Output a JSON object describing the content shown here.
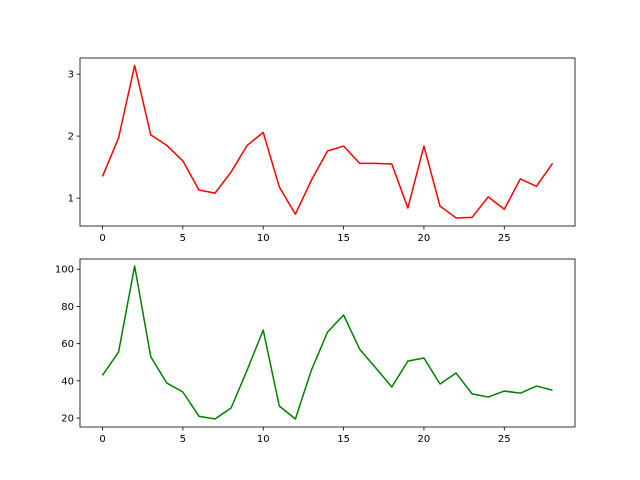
{
  "chart_data": [
    {
      "type": "line",
      "x": [
        0,
        1,
        2,
        3,
        4,
        5,
        6,
        7,
        8,
        9,
        10,
        11,
        12,
        13,
        14,
        15,
        16,
        17,
        18,
        19,
        20,
        21,
        22,
        23,
        24,
        25,
        26,
        27,
        28
      ],
      "series": [
        {
          "color": "#ff0000",
          "values": [
            1.35,
            1.97,
            3.14,
            2.02,
            1.85,
            1.6,
            1.13,
            1.08,
            1.42,
            1.85,
            2.06,
            1.18,
            0.74,
            1.29,
            1.76,
            1.84,
            1.56,
            1.56,
            1.55,
            0.84,
            1.84,
            0.87,
            0.68,
            0.69,
            1.02,
            0.82,
            1.31,
            1.19,
            1.56
          ]
        }
      ],
      "xlim": [
        -1.4,
        29.4
      ],
      "xticks": [
        0,
        5,
        10,
        15,
        20,
        25
      ],
      "ylim": [
        0.55,
        3.26
      ],
      "yticks": [
        1,
        2,
        3
      ]
    },
    {
      "type": "line",
      "x": [
        0,
        1,
        2,
        3,
        4,
        5,
        6,
        7,
        8,
        9,
        10,
        11,
        12,
        13,
        14,
        15,
        16,
        17,
        18,
        19,
        20,
        21,
        22,
        23,
        24,
        25,
        26,
        27,
        28
      ],
      "series": [
        {
          "color": "#008000",
          "values": [
            43,
            55.5,
            101.7,
            53,
            38.8,
            34,
            21,
            19.5,
            25.4,
            45.8,
            67.3,
            26.5,
            19.5,
            45.8,
            66.2,
            75.4,
            57,
            47,
            36.7,
            50.6,
            52.3,
            38.3,
            44.2,
            33,
            31.3,
            34.5,
            33.4,
            37.2,
            35
          ]
        }
      ],
      "xlim": [
        -1.4,
        29.4
      ],
      "xticks": [
        0,
        5,
        10,
        15,
        20,
        25
      ],
      "ylim": [
        15.2,
        105.5
      ],
      "yticks": [
        20,
        40,
        60,
        80,
        100
      ]
    }
  ]
}
